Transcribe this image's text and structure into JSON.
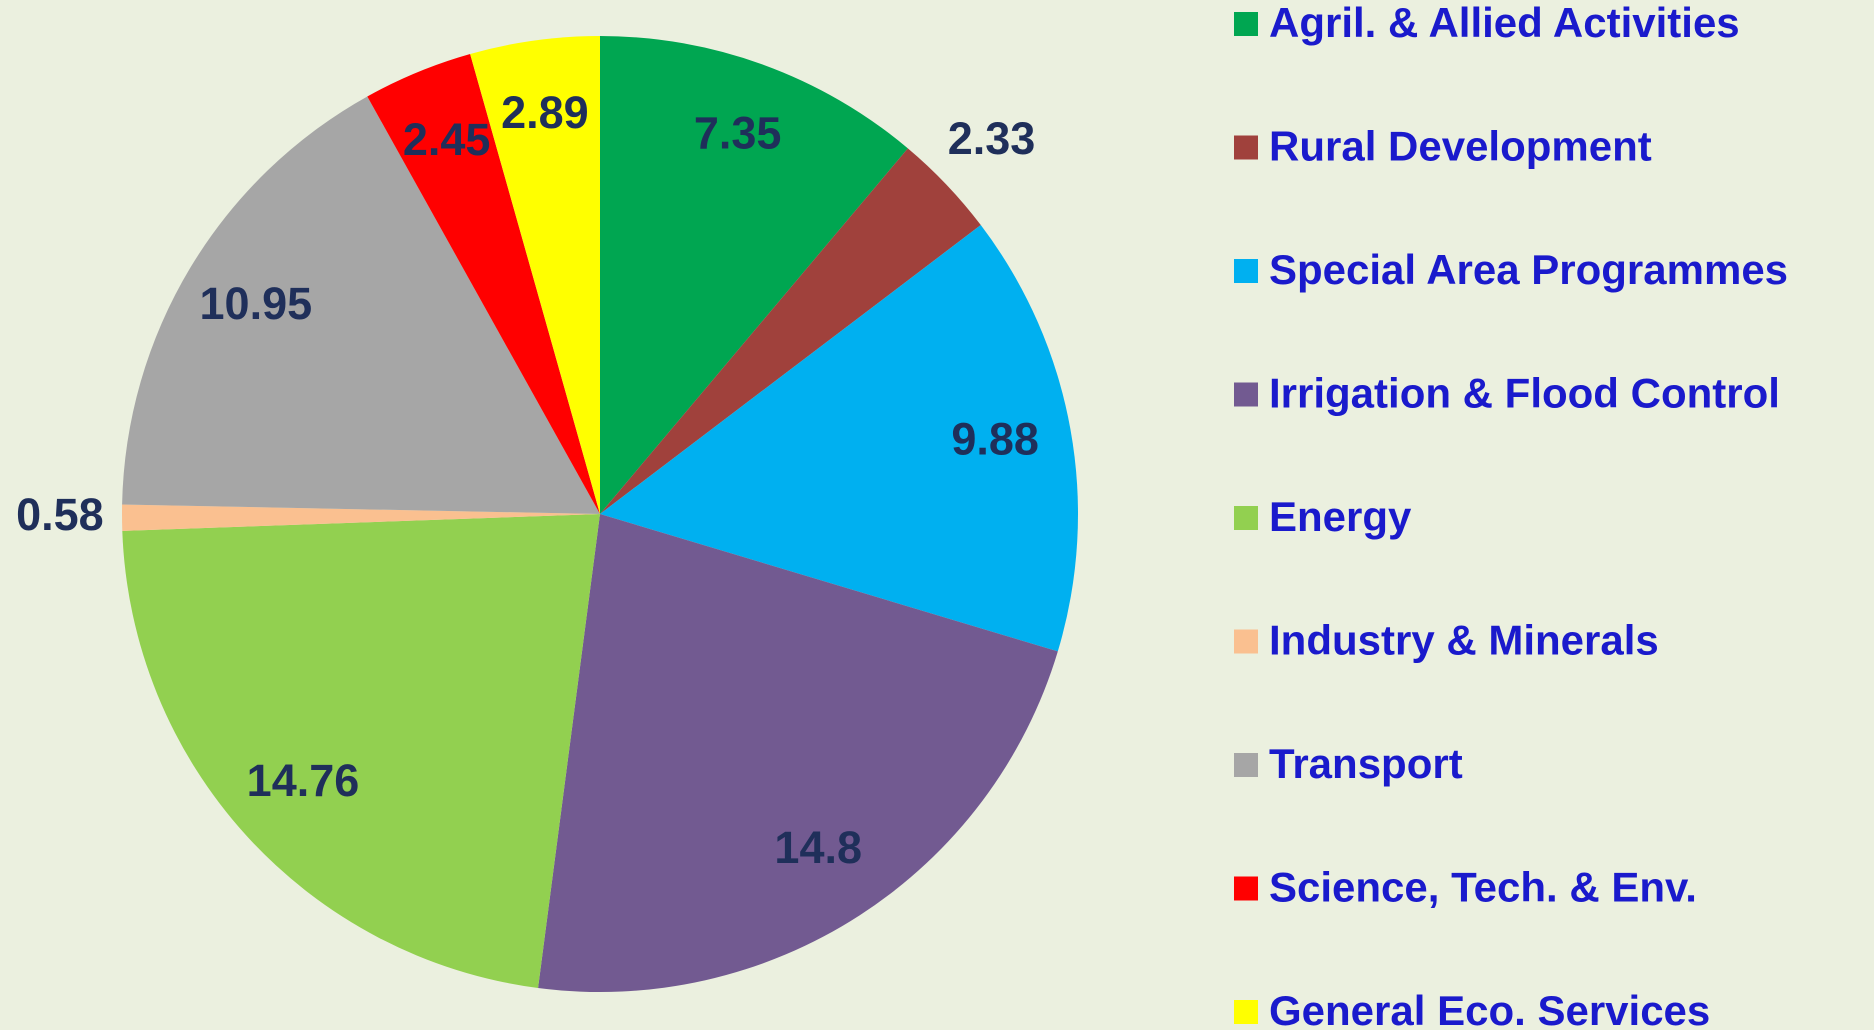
{
  "chart_data": {
    "type": "pie",
    "categories": [
      "Agril. & Allied Activities",
      "Rural Development",
      "Special Area Programmes",
      "Irrigation & Flood Control",
      "Energy",
      "Industry & Minerals",
      "Transport",
      "Science, Tech. & Env.",
      "General Eco. Services"
    ],
    "values": [
      7.35,
      2.33,
      9.88,
      14.8,
      14.76,
      0.58,
      10.95,
      2.45,
      2.89
    ],
    "colors": [
      "#00a651",
      "#a0413c",
      "#00b0f0",
      "#725a91",
      "#92d050",
      "#fac090",
      "#a6a6a6",
      "#ff0000",
      "#ffff00"
    ],
    "legend": "right"
  }
}
